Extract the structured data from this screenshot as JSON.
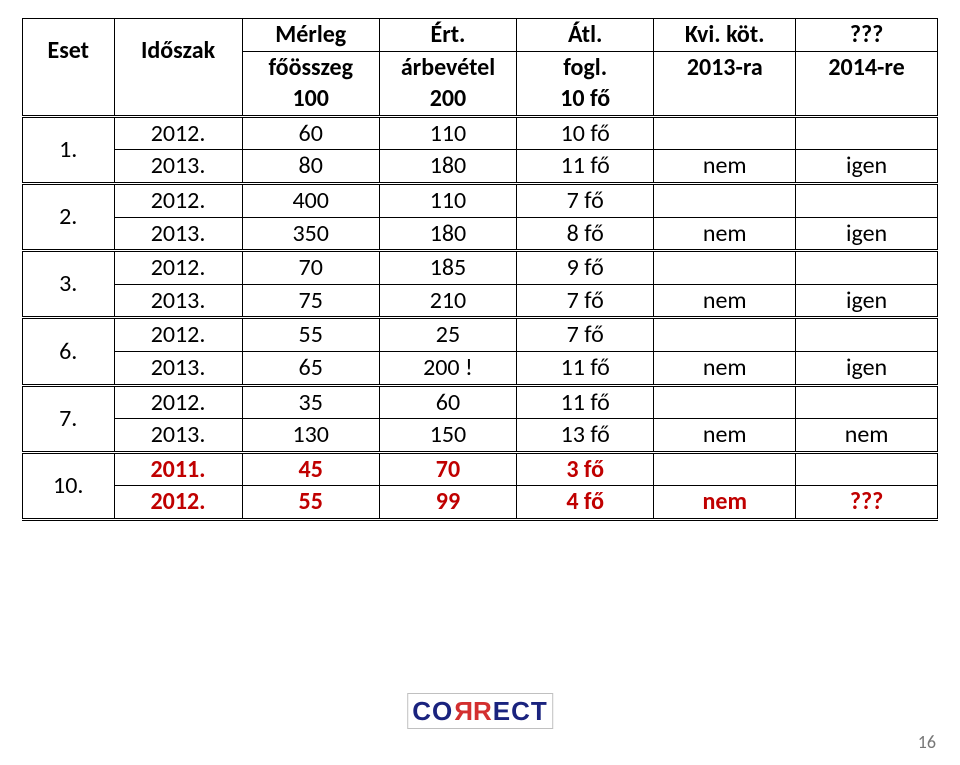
{
  "header": {
    "h_eset": "Eset",
    "h_idoszak": "Időszak",
    "h_merleg_1": "Mérleg",
    "h_merleg_2": "főösszeg",
    "h_arbev_1": "Ért.",
    "h_arbev_2": "árbevétel",
    "h_fogl_1": "Átl.",
    "h_fogl_2": "fogl.",
    "h_kvi_1": "Kvi. köt.",
    "h_kvi_2": "2013-ra",
    "h_qqq_1": "???",
    "h_qqq_2": "2014-re",
    "sub_merleg": "100",
    "sub_arbev": "200",
    "sub_fogl": "10 fő"
  },
  "groups": [
    {
      "eset": "1.",
      "r1": {
        "year": "2012.",
        "merleg": "60",
        "arbev": "110",
        "fogl": "10 fő",
        "kvi": "",
        "qqq": ""
      },
      "r2": {
        "year": "2013.",
        "merleg": "80",
        "arbev": "180",
        "fogl": "11 fő",
        "kvi": "nem",
        "qqq": "igen"
      }
    },
    {
      "eset": "2.",
      "r1": {
        "year": "2012.",
        "merleg": "400",
        "arbev": "110",
        "fogl": "7 fő",
        "kvi": "",
        "qqq": ""
      },
      "r2": {
        "year": "2013.",
        "merleg": "350",
        "arbev": "180",
        "fogl": "8 fő",
        "kvi": "nem",
        "qqq": "igen"
      }
    },
    {
      "eset": "3.",
      "r1": {
        "year": "2012.",
        "merleg": "70",
        "arbev": "185",
        "fogl": "9 fő",
        "kvi": "",
        "qqq": ""
      },
      "r2": {
        "year": "2013.",
        "merleg": "75",
        "arbev": "210",
        "fogl": "7 fő",
        "kvi": "nem",
        "qqq": "igen"
      }
    },
    {
      "eset": "6.",
      "r1": {
        "year": "2012.",
        "merleg": "55",
        "arbev": "25",
        "fogl": "7 fő",
        "kvi": "",
        "qqq": ""
      },
      "r2": {
        "year": "2013.",
        "merleg": "65",
        "arbev": "200 !",
        "fogl": "11 fő",
        "kvi": "nem",
        "qqq": "igen"
      }
    },
    {
      "eset": "7.",
      "r1": {
        "year": "2012.",
        "merleg": "35",
        "arbev": "60",
        "fogl": "11 fő",
        "kvi": "",
        "qqq": ""
      },
      "r2": {
        "year": "2013.",
        "merleg": "130",
        "arbev": "150",
        "fogl": "13 fő",
        "kvi": "nem",
        "qqq": "nem"
      }
    },
    {
      "eset": "10.",
      "highlight": true,
      "r1": {
        "year": "2011.",
        "merleg": "45",
        "arbev": "70",
        "fogl": "3 fő",
        "kvi": "",
        "qqq": ""
      },
      "r2": {
        "year": "2012.",
        "merleg": "55",
        "arbev": "99",
        "fogl": "4 fő",
        "kvi": "nem",
        "qqq": "???"
      }
    }
  ],
  "logo": {
    "co": "CO",
    "r": "R",
    "r2": "R",
    "ect": "ECT"
  },
  "page_number": "16"
}
